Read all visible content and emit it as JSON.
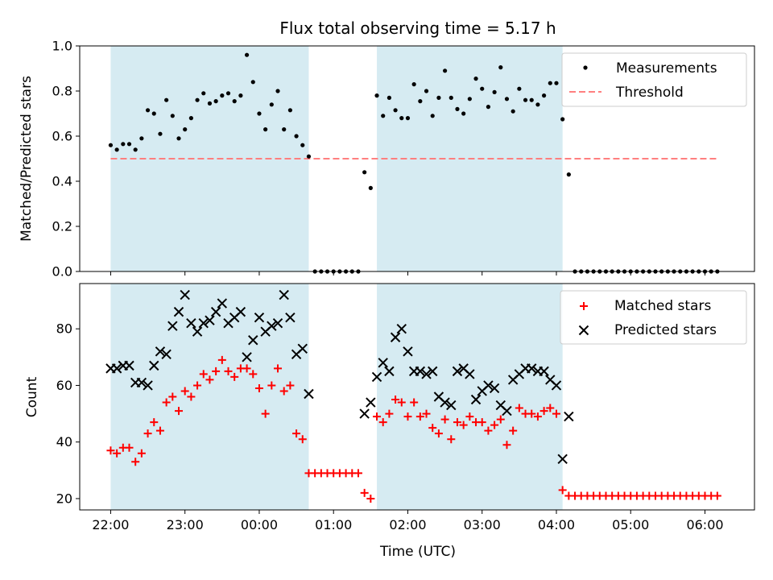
{
  "chart_data": [
    {
      "type": "scatter",
      "title": "Flux total observing time = 5.17 h",
      "ylabel": "Matched/Predicted stars",
      "xlabel": "",
      "xlim": [
        "21:35",
        "06:40"
      ],
      "ylim": [
        0,
        1
      ],
      "yticks": [
        "0.0",
        "0.2",
        "0.4",
        "0.6",
        "0.8",
        "1.0"
      ],
      "grid": false,
      "legend_position": "top-right",
      "threshold": {
        "name": "Threshold",
        "value": 0.5,
        "x_range": [
          "22:00",
          "06:10"
        ],
        "color": "#ff7f7f"
      },
      "shaded_intervals": [
        [
          "22:00",
          "00:40"
        ],
        [
          "01:35",
          "04:05"
        ]
      ],
      "series": [
        {
          "name": "Measurements",
          "marker": "dot",
          "color": "#000000",
          "x": [
            "22:00",
            "22:05",
            "22:10",
            "22:15",
            "22:20",
            "22:25",
            "22:30",
            "22:35",
            "22:40",
            "22:45",
            "22:50",
            "22:55",
            "23:00",
            "23:05",
            "23:10",
            "23:15",
            "23:20",
            "23:25",
            "23:30",
            "23:35",
            "23:40",
            "23:45",
            "23:50",
            "23:55",
            "00:00",
            "00:05",
            "00:10",
            "00:15",
            "00:20",
            "00:25",
            "00:30",
            "00:35",
            "00:40",
            "00:45",
            "00:50",
            "00:55",
            "01:00",
            "01:05",
            "01:10",
            "01:15",
            "01:20",
            "01:25",
            "01:30",
            "01:35",
            "01:40",
            "01:45",
            "01:50",
            "01:55",
            "02:00",
            "02:05",
            "02:10",
            "02:15",
            "02:20",
            "02:25",
            "02:30",
            "02:35",
            "02:40",
            "02:45",
            "02:50",
            "02:55",
            "03:00",
            "03:05",
            "03:10",
            "03:15",
            "03:20",
            "03:25",
            "03:30",
            "03:35",
            "03:40",
            "03:45",
            "03:50",
            "03:55",
            "04:00",
            "04:05",
            "04:10",
            "04:15",
            "04:20",
            "04:25",
            "04:30",
            "04:35",
            "04:40",
            "04:45",
            "04:50",
            "04:55",
            "05:00",
            "05:05",
            "05:10",
            "05:15",
            "05:20",
            "05:25",
            "05:30",
            "05:35",
            "05:40",
            "05:45",
            "05:50",
            "05:55",
            "06:00",
            "06:05",
            "06:10"
          ],
          "y": [
            0.56,
            0.54,
            0.565,
            0.565,
            0.54,
            0.59,
            0.715,
            0.7,
            0.61,
            0.76,
            0.69,
            0.59,
            0.63,
            0.68,
            0.76,
            0.79,
            0.745,
            0.755,
            0.78,
            0.79,
            0.755,
            0.78,
            0.96,
            0.84,
            0.7,
            0.63,
            0.74,
            0.8,
            0.63,
            0.715,
            0.6,
            0.56,
            0.51,
            0,
            0,
            0,
            0,
            0,
            0,
            0,
            0,
            0.44,
            0.37,
            0.78,
            0.69,
            0.77,
            0.715,
            0.68,
            0.68,
            0.83,
            0.755,
            0.8,
            0.69,
            0.77,
            0.89,
            0.77,
            0.72,
            0.7,
            0.765,
            0.855,
            0.81,
            0.73,
            0.795,
            0.905,
            0.765,
            0.71,
            0.81,
            0.76,
            0.76,
            0.74,
            0.78,
            0.835,
            0.835,
            0.675,
            0.43,
            0,
            0,
            0,
            0,
            0,
            0,
            0,
            0,
            0,
            0,
            0,
            0,
            0,
            0,
            0,
            0,
            0,
            0,
            0,
            0,
            0,
            0,
            0,
            0
          ]
        }
      ]
    },
    {
      "type": "scatter",
      "title": "",
      "xlabel": "Time (UTC)",
      "ylabel": "Count",
      "xlim": [
        "21:35",
        "06:40"
      ],
      "ylim": [
        16,
        96
      ],
      "yticks": [
        "20",
        "40",
        "60",
        "80"
      ],
      "xticks": [
        "22:00",
        "23:00",
        "00:00",
        "01:00",
        "02:00",
        "03:00",
        "04:00",
        "05:00",
        "06:00"
      ],
      "grid": false,
      "legend_position": "top-right",
      "shaded_intervals": [
        [
          "22:00",
          "00:40"
        ],
        [
          "01:35",
          "04:05"
        ]
      ],
      "series": [
        {
          "name": "Matched stars",
          "marker": "plus",
          "color": "#ff0000",
          "x": [
            "22:00",
            "22:05",
            "22:10",
            "22:15",
            "22:20",
            "22:25",
            "22:30",
            "22:35",
            "22:40",
            "22:45",
            "22:50",
            "22:55",
            "23:00",
            "23:05",
            "23:10",
            "23:15",
            "23:20",
            "23:25",
            "23:30",
            "23:35",
            "23:40",
            "23:45",
            "23:50",
            "23:55",
            "00:00",
            "00:05",
            "00:10",
            "00:15",
            "00:20",
            "00:25",
            "00:30",
            "00:35",
            "00:40",
            "00:45",
            "00:50",
            "00:55",
            "01:00",
            "01:05",
            "01:10",
            "01:15",
            "01:20",
            "01:25",
            "01:30",
            "01:35",
            "01:40",
            "01:45",
            "01:50",
            "01:55",
            "02:00",
            "02:05",
            "02:10",
            "02:15",
            "02:20",
            "02:25",
            "02:30",
            "02:35",
            "02:40",
            "02:45",
            "02:50",
            "02:55",
            "03:00",
            "03:05",
            "03:10",
            "03:15",
            "03:20",
            "03:25",
            "03:30",
            "03:35",
            "03:40",
            "03:45",
            "03:50",
            "03:55",
            "04:00",
            "04:05",
            "04:10",
            "04:15",
            "04:20",
            "04:25",
            "04:30",
            "04:35",
            "04:40",
            "04:45",
            "04:50",
            "04:55",
            "05:00",
            "05:05",
            "05:10",
            "05:15",
            "05:20",
            "05:25",
            "05:30",
            "05:35",
            "05:40",
            "05:45",
            "05:50",
            "05:55",
            "06:00",
            "06:05",
            "06:10"
          ],
          "y": [
            37,
            36,
            38,
            38,
            33,
            36,
            43,
            47,
            44,
            54,
            56,
            51,
            58,
            56,
            60,
            64,
            62,
            65,
            69,
            65,
            63,
            66,
            66,
            64,
            59,
            50,
            60,
            66,
            58,
            60,
            43,
            41,
            29,
            29,
            29,
            29,
            29,
            29,
            29,
            29,
            29,
            22,
            20,
            49,
            47,
            50,
            55,
            54,
            49,
            54,
            49,
            50,
            45,
            43,
            48,
            41,
            47,
            46,
            49,
            47,
            47,
            44,
            46,
            48,
            39,
            44,
            52,
            50,
            50,
            49,
            51,
            52,
            50,
            23,
            21,
            21,
            21,
            21,
            21,
            21,
            21,
            21,
            21,
            21,
            21,
            21,
            21,
            21,
            21,
            21,
            21,
            21,
            21,
            21,
            21,
            21,
            21,
            21,
            21
          ]
        },
        {
          "name": "Predicted stars",
          "marker": "x",
          "color": "#000000",
          "x": [
            "22:00",
            "22:05",
            "22:10",
            "22:15",
            "22:20",
            "22:25",
            "22:30",
            "22:35",
            "22:40",
            "22:45",
            "22:50",
            "22:55",
            "23:00",
            "23:05",
            "23:10",
            "23:15",
            "23:20",
            "23:25",
            "23:30",
            "23:35",
            "23:40",
            "23:45",
            "23:50",
            "23:55",
            "00:00",
            "00:05",
            "00:10",
            "00:15",
            "00:20",
            "00:25",
            "00:30",
            "00:35",
            "00:40",
            "01:25",
            "01:30",
            "01:35",
            "01:40",
            "01:45",
            "01:50",
            "01:55",
            "02:00",
            "02:05",
            "02:10",
            "02:15",
            "02:20",
            "02:25",
            "02:30",
            "02:35",
            "02:40",
            "02:45",
            "02:50",
            "02:55",
            "03:00",
            "03:05",
            "03:10",
            "03:15",
            "03:20",
            "03:25",
            "03:30",
            "03:35",
            "03:40",
            "03:45",
            "03:50",
            "03:55",
            "04:00",
            "04:05",
            "04:10"
          ],
          "y": [
            66,
            66,
            67,
            67,
            61,
            61,
            60,
            67,
            72,
            71,
            81,
            86,
            92,
            82,
            79,
            82,
            83,
            86,
            89,
            82,
            84,
            86,
            70,
            76,
            84,
            79,
            81,
            82,
            92,
            84,
            71,
            73,
            57,
            50,
            54,
            63,
            68,
            65,
            77,
            80,
            72,
            65,
            65,
            64,
            65,
            56,
            54,
            53,
            65,
            66,
            64,
            55,
            58,
            60,
            59,
            53,
            51,
            62,
            64,
            66,
            66,
            65,
            65,
            62,
            60,
            34,
            49
          ]
        }
      ]
    }
  ]
}
